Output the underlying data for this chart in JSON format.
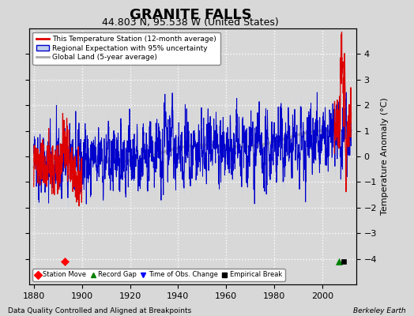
{
  "title": "GRANITE FALLS",
  "subtitle": "44.803 N, 95.538 W (United States)",
  "ylabel": "Temperature Anomaly (°C)",
  "xlabel_left": "Data Quality Controlled and Aligned at Breakpoints",
  "xlabel_right": "Berkeley Earth",
  "xlim": [
    1878,
    2014
  ],
  "ylim": [
    -5,
    5
  ],
  "yticks": [
    -4,
    -3,
    -2,
    -1,
    0,
    1,
    2,
    3,
    4
  ],
  "xticks": [
    1880,
    1900,
    1920,
    1940,
    1960,
    1980,
    2000
  ],
  "bg_color": "#d8d8d8",
  "plot_bg_color": "#d8d8d8",
  "title_fontsize": 13,
  "subtitle_fontsize": 9,
  "seed": 42,
  "station_move_x": [
    1893
  ],
  "station_move_y": [
    -4.1
  ],
  "record_gap_x": [
    2007
  ],
  "record_gap_y": [
    -4.1
  ],
  "empirical_break_x": [
    2009
  ],
  "empirical_break_y": [
    -4.1
  ],
  "uncertainty_color": "#c0cfea",
  "regional_color": "#0000cc",
  "station_color": "#dd0000",
  "global_color": "#aaaaaa"
}
